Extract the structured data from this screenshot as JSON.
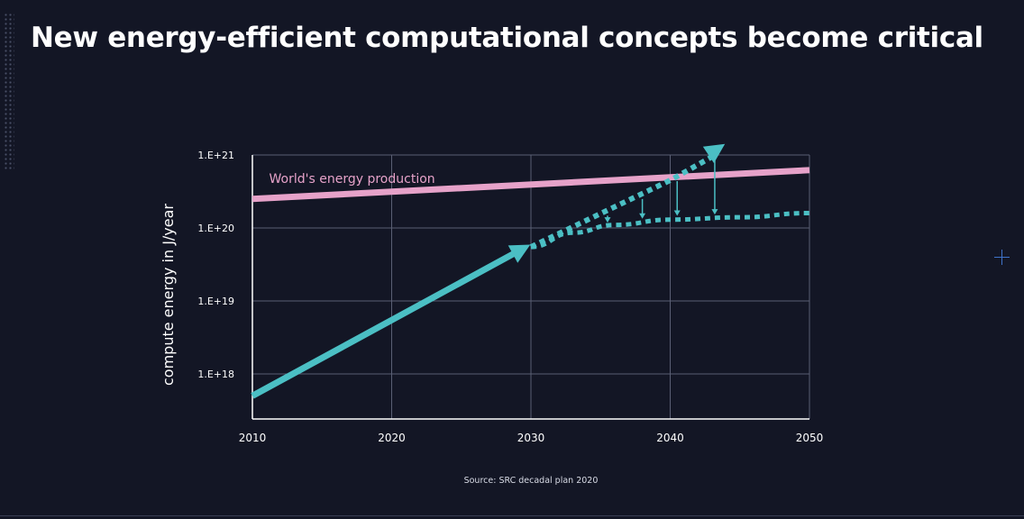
{
  "slide": {
    "title": "New energy-efficient computational concepts become critical",
    "source": "Source: SRC decadal plan 2020"
  },
  "colors": {
    "background": "#131625",
    "production_line": "#e6a2c9",
    "compute_line": "#4bbfc4",
    "gridline": "#5a5f74",
    "text": "#ffffff"
  },
  "icons": [
    "crosshair-icon"
  ],
  "chart_data": {
    "type": "line",
    "ylabel": "compute energy in J/year",
    "xlabel": "",
    "log_y": true,
    "xlim": [
      2010,
      2050
    ],
    "ylim": [
      3e+17,
      1e+21
    ],
    "x_ticks": [
      2010,
      2020,
      2030,
      2040,
      2050
    ],
    "x_tick_labels": [
      "2010",
      "2020",
      "2030",
      "2040",
      "2050"
    ],
    "y_ticks": [
      1e+18,
      1e+19,
      1e+20,
      1e+21
    ],
    "y_tick_labels": [
      "1.E+18",
      "1.E+19",
      "1.E+20",
      "1.E+21"
    ],
    "grid": true,
    "series": [
      {
        "name": "World's energy production",
        "style": "solid",
        "x": [
          2010,
          2050
        ],
        "y": [
          2.5e+20,
          6.2e+20
        ]
      },
      {
        "name": "",
        "style": "solid-arrow",
        "x": [
          2010,
          2029.5
        ],
        "y": [
          5e+17,
          5.3e+19
        ]
      },
      {
        "name": "",
        "style": "dotted-arrow",
        "x": [
          2030,
          2040,
          2043.5
        ],
        "y": [
          5.5e+19,
          4.5e+20,
          1.25e+21
        ]
      },
      {
        "name": "",
        "style": "dotted",
        "x": [
          2030,
          2033,
          2036,
          2040,
          2045,
          2050
        ],
        "y": [
          5.5e+19,
          8.6e+19,
          1.1e+20,
          1.3e+20,
          1.4e+20,
          1.6e+20
        ]
      }
    ],
    "gap_arrows_x": [
      2035.5,
      2038,
      2040.5,
      2043.2
    ],
    "annotations": [
      {
        "text": "World's energy production",
        "x": 2011.2,
        "y": 4.8e+20
      }
    ]
  }
}
